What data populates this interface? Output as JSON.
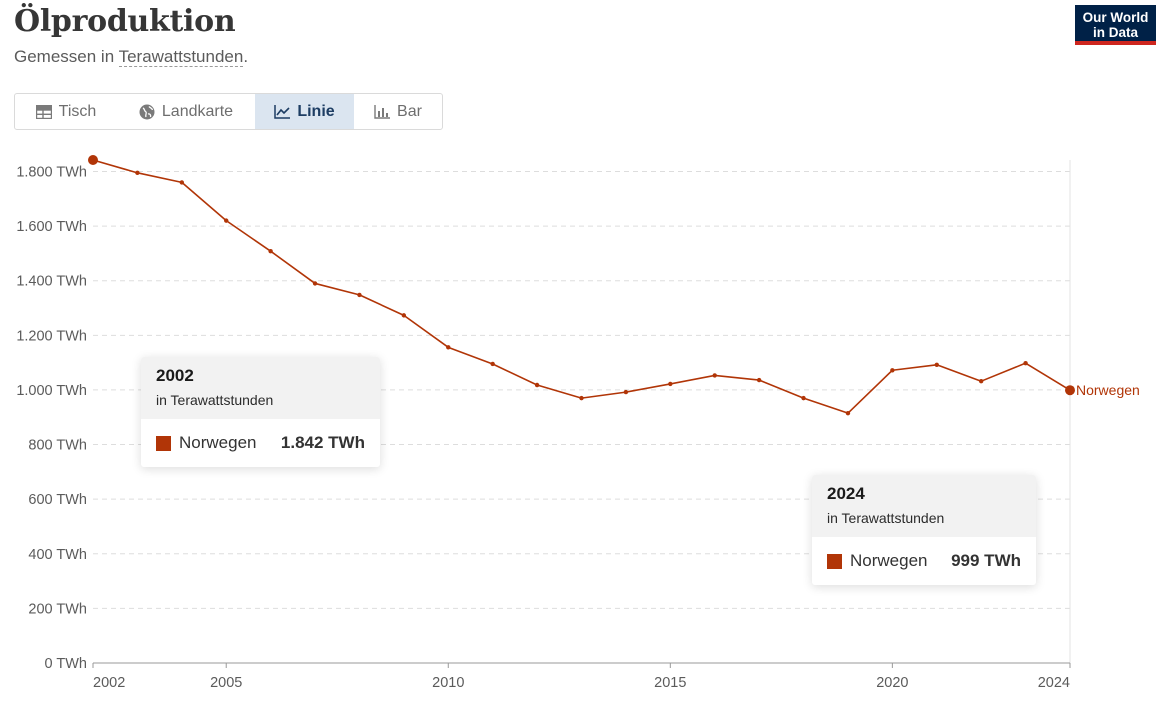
{
  "header": {
    "title": "Ölproduktion",
    "subtitle_prefix": "Gemessen in ",
    "subtitle_term": "Terawattstunden",
    "subtitle_suffix": "."
  },
  "logo": {
    "line1": "Our World",
    "line2": "in Data"
  },
  "tabs": [
    {
      "label": "Tisch",
      "icon": "table-icon",
      "active": false
    },
    {
      "label": "Landkarte",
      "icon": "globe-icon",
      "active": false
    },
    {
      "label": "Linie",
      "icon": "line-chart-icon",
      "active": true
    },
    {
      "label": "Bar",
      "icon": "bar-chart-icon",
      "active": false
    }
  ],
  "colors": {
    "series": "#b13507",
    "grid": "#dddddd",
    "text": "#5b5b5b"
  },
  "chart_data": {
    "type": "line",
    "title": "Ölproduktion",
    "unit": "TWh",
    "x": [
      2002,
      2003,
      2004,
      2005,
      2006,
      2007,
      2008,
      2009,
      2010,
      2011,
      2012,
      2013,
      2014,
      2015,
      2016,
      2017,
      2018,
      2019,
      2020,
      2021,
      2022,
      2023,
      2024
    ],
    "series": [
      {
        "name": "Norwegen",
        "color": "#b13507",
        "values": [
          1842,
          1795,
          1760,
          1620,
          1508,
          1390,
          1348,
          1273,
          1156,
          1095,
          1018,
          970,
          992,
          1022,
          1053,
          1036,
          970,
          915,
          1072,
          1092,
          1032,
          1098,
          999
        ]
      }
    ],
    "y_ticks": [
      "0 TWh",
      "200 TWh",
      "400 TWh",
      "600 TWh",
      "800 TWh",
      "1.000 TWh",
      "1.200 TWh",
      "1.400 TWh",
      "1.600 TWh",
      "1.800 TWh"
    ],
    "y_tick_values": [
      0,
      200,
      400,
      600,
      800,
      1000,
      1200,
      1400,
      1600,
      1800
    ],
    "x_ticks": [
      "2002",
      "2005",
      "2010",
      "2015",
      "2020",
      "2024"
    ],
    "x_tick_values": [
      2002,
      2005,
      2010,
      2015,
      2020,
      2024
    ],
    "ylim": [
      0,
      1842
    ],
    "xlim": [
      2002,
      2024
    ],
    "grid": "horizontal-dashed",
    "legend": "end-label-right"
  },
  "tooltips": [
    {
      "year": "2002",
      "unit_label": "in Terawattstunden",
      "entity": "Norwegen",
      "value": "1.842 TWh"
    },
    {
      "year": "2024",
      "unit_label": "in Terawattstunden",
      "entity": "Norwegen",
      "value": "999 TWh"
    }
  ]
}
